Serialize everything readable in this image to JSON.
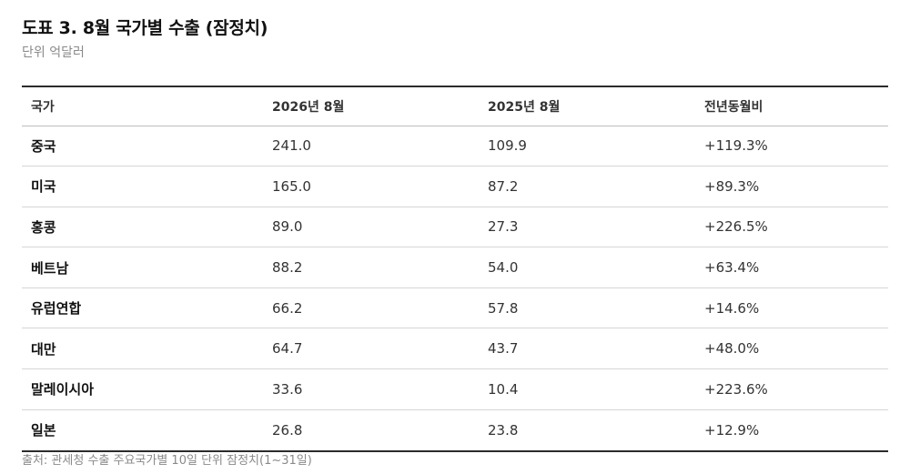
{
  "header": {
    "title": "도표 3. 8월 국가별 수출 (잠정치)",
    "subtitle": "단위 억달러"
  },
  "table": {
    "columns": [
      "국가",
      "2026년 8월",
      "2025년 8월",
      "전년동월비"
    ],
    "rows": [
      [
        "중국",
        "241.0",
        "109.9",
        "+119.3%"
      ],
      [
        "미국",
        "165.0",
        "87.2",
        "+89.3%"
      ],
      [
        "홍콩",
        "89.0",
        "27.3",
        "+226.5%"
      ],
      [
        "베트남",
        "88.2",
        "54.0",
        "+63.4%"
      ],
      [
        "유럽연합",
        "66.2",
        "57.8",
        "+14.6%"
      ],
      [
        "대만",
        "64.7",
        "43.7",
        "+48.0%"
      ],
      [
        "말레이시아",
        "33.6",
        "10.4",
        "+223.6%"
      ],
      [
        "일본",
        "26.8",
        "23.8",
        "+12.9%"
      ]
    ]
  },
  "footer": {
    "source": "출처: 관세청 수출 주요국가별 10일 단위 잠정치(1~31일)"
  }
}
